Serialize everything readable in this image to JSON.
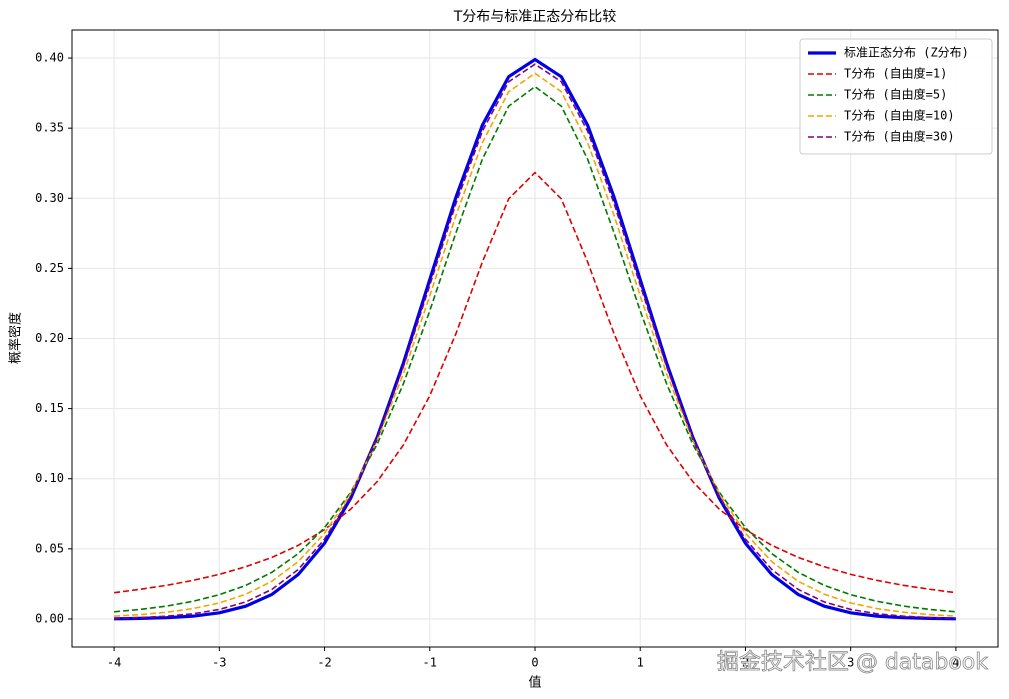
{
  "chart_data": {
    "type": "line",
    "title": "T分布与标准正态分布比较",
    "x_label": "值",
    "y_label": "概率密度",
    "watermark": "掘金技术社区 @ databook",
    "xlim": [
      -4.4,
      4.4
    ],
    "ylim": [
      -0.02,
      0.42
    ],
    "xticks": [
      -4,
      -3,
      -2,
      -1,
      0,
      1,
      2,
      3,
      4
    ],
    "yticks": [
      {
        "value": 0,
        "label": "0.00"
      },
      {
        "value": 0.05,
        "label": "0.05"
      },
      {
        "value": 0.1,
        "label": "0.10"
      },
      {
        "value": 0.15,
        "label": "0.15"
      },
      {
        "value": 0.2,
        "label": "0.20"
      },
      {
        "value": 0.25,
        "label": "0.25"
      },
      {
        "value": 0.3,
        "label": "0.30"
      },
      {
        "value": 0.35,
        "label": "0.35"
      },
      {
        "value": 0.4,
        "label": "0.40"
      }
    ],
    "grid": true,
    "legend": "upper right",
    "x": [
      -4,
      -3.75,
      -3.5,
      -3.25,
      -3,
      -2.75,
      -2.5,
      -2.25,
      -2,
      -1.75,
      -1.5,
      -1.25,
      -1,
      -0.75,
      -0.5,
      -0.25,
      0,
      0.25,
      0.5,
      0.75,
      1,
      1.25,
      1.5,
      1.75,
      2,
      2.25,
      2.5,
      2.75,
      3,
      3.25,
      3.5,
      3.75,
      4
    ],
    "series": [
      {
        "name": "标准正态分布 (Z分布)",
        "color": "#0000e6",
        "dashed": false,
        "values": [
          0.0001,
          0.0004,
          0.0009,
          0.002,
          0.0044,
          0.0091,
          0.0175,
          0.0317,
          0.054,
          0.0863,
          0.1295,
          0.1826,
          0.242,
          0.3011,
          0.3521,
          0.3867,
          0.3989,
          0.3867,
          0.3521,
          0.3011,
          0.242,
          0.1826,
          0.1295,
          0.0863,
          0.054,
          0.0317,
          0.0175,
          0.0091,
          0.0044,
          0.002,
          0.0009,
          0.0004,
          0.0001
        ]
      },
      {
        "name": "T分布 (自由度=1)",
        "color": "#e00000",
        "dashed": true,
        "values": [
          0.0187,
          0.0212,
          0.024,
          0.0275,
          0.0318,
          0.0372,
          0.0439,
          0.0525,
          0.0637,
          0.0784,
          0.0979,
          0.1242,
          0.1592,
          0.2037,
          0.2546,
          0.2996,
          0.3183,
          0.2996,
          0.2546,
          0.2037,
          0.1592,
          0.1242,
          0.0979,
          0.0784,
          0.0637,
          0.0525,
          0.0439,
          0.0372,
          0.0318,
          0.0275,
          0.024,
          0.0212,
          0.0187
        ]
      },
      {
        "name": "T分布 (自由度=5)",
        "color": "#007a00",
        "dashed": true,
        "values": [
          0.0051,
          0.0068,
          0.0092,
          0.0126,
          0.0173,
          0.0239,
          0.0333,
          0.0466,
          0.0651,
          0.0905,
          0.1245,
          0.1679,
          0.2197,
          0.2757,
          0.3279,
          0.3657,
          0.3796,
          0.3657,
          0.3279,
          0.2757,
          0.2197,
          0.1679,
          0.1245,
          0.0905,
          0.0651,
          0.0466,
          0.0333,
          0.0239,
          0.0173,
          0.0126,
          0.0092,
          0.0068,
          0.0051
        ]
      },
      {
        "name": "T分布 (自由度=10)",
        "color": "#f0a800",
        "dashed": true,
        "values": [
          0.002,
          0.0031,
          0.0048,
          0.0074,
          0.0114,
          0.0176,
          0.0269,
          0.0409,
          0.0611,
          0.0895,
          0.1274,
          0.1751,
          0.2304,
          0.288,
          0.3397,
          0.376,
          0.3891,
          0.376,
          0.3397,
          0.288,
          0.2304,
          0.1751,
          0.1274,
          0.0895,
          0.0611,
          0.0409,
          0.0269,
          0.0176,
          0.0114,
          0.0074,
          0.0048,
          0.0031,
          0.002
        ]
      },
      {
        "name": "T分布 (自由度=30)",
        "color": "#800080",
        "dashed": true,
        "values": [
          0.0005,
          0.001,
          0.002,
          0.0037,
          0.0068,
          0.0121,
          0.0211,
          0.0353,
          0.0569,
          0.0877,
          0.129,
          0.1801,
          0.238,
          0.2966,
          0.3479,
          0.3831,
          0.3956,
          0.3831,
          0.3479,
          0.2966,
          0.238,
          0.1801,
          0.129,
          0.0877,
          0.0569,
          0.0353,
          0.0211,
          0.0121,
          0.0068,
          0.0037,
          0.002,
          0.001,
          0.0005
        ]
      }
    ]
  }
}
